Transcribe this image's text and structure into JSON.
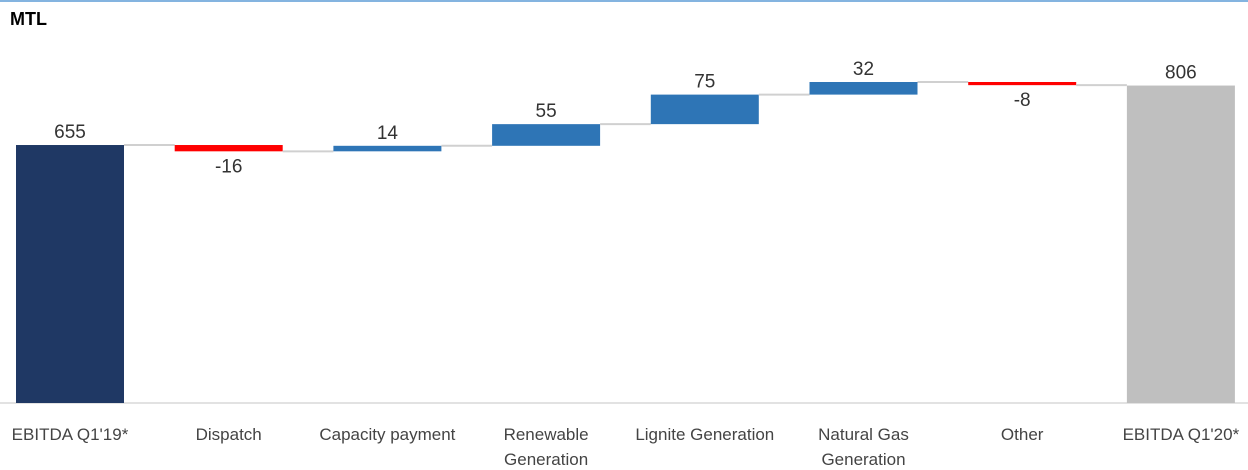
{
  "chart_data": {
    "type": "waterfall",
    "title": "MTL",
    "categories": [
      "EBITDA Q1'19*",
      "Dispatch",
      "Capacity payment",
      "Renewable Generation",
      "Lignite Generation",
      "Natural Gas Generation",
      "Other",
      "EBITDA Q1'20*"
    ],
    "values": [
      655,
      -16,
      14,
      55,
      75,
      32,
      -8,
      806
    ],
    "measure": [
      "absolute",
      "relative",
      "relative",
      "relative",
      "relative",
      "relative",
      "relative",
      "absolute"
    ],
    "colors": [
      "#1f3864",
      "#ff0000",
      "#2e75b6",
      "#2e75b6",
      "#2e75b6",
      "#2e75b6",
      "#ff0000",
      "#bfbfbf"
    ]
  }
}
